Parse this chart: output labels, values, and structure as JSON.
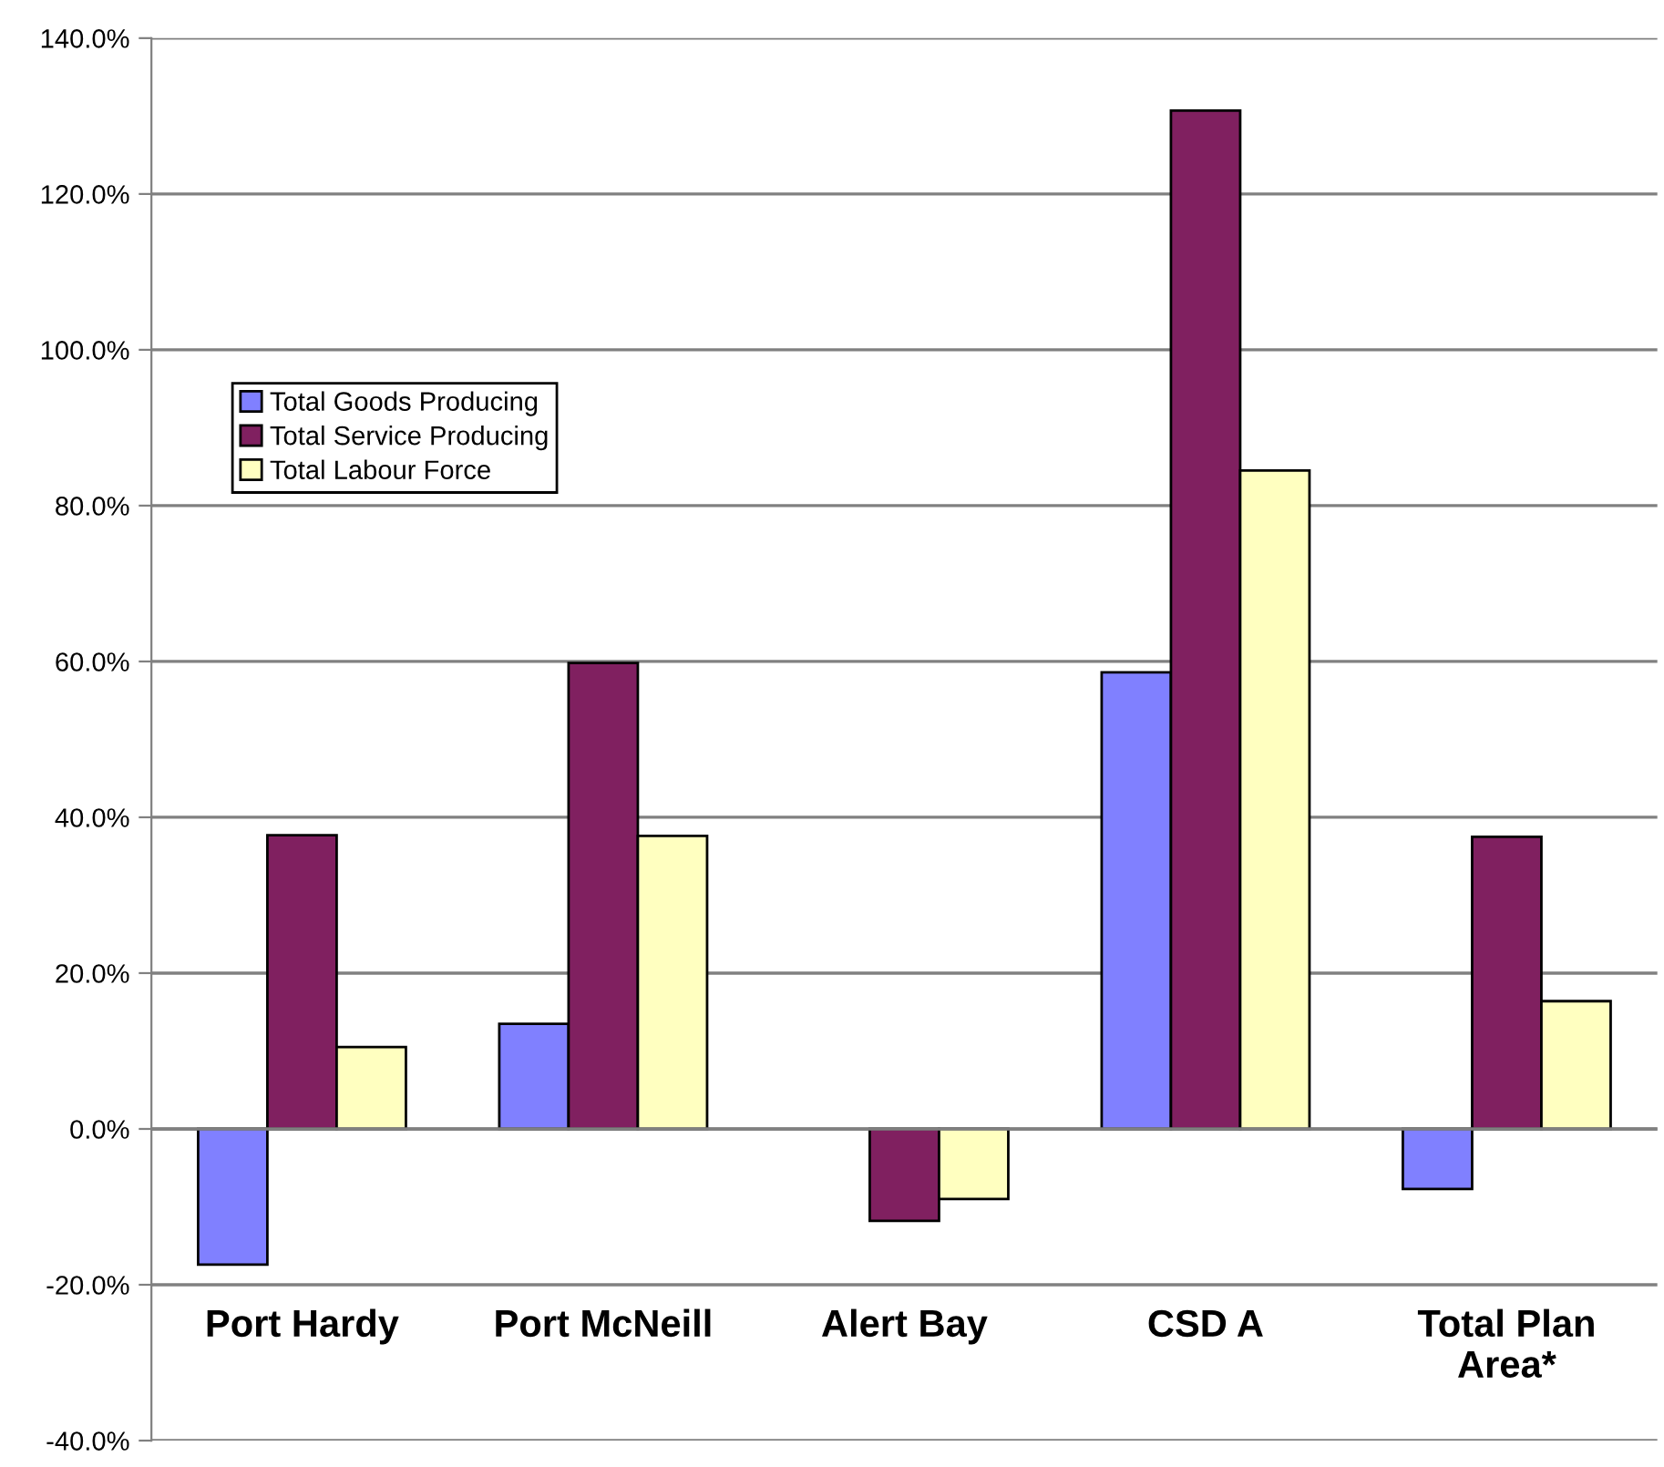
{
  "chart_data": {
    "type": "bar",
    "categories": [
      "Port Hardy",
      "Port McNeill",
      "Alert Bay",
      "CSD A",
      "Total Plan\nArea*"
    ],
    "series": [
      {
        "name": "Total Goods Producing",
        "color": "#8080ff",
        "values": [
          -17.4,
          13.5,
          null,
          58.6,
          -7.7
        ]
      },
      {
        "name": "Total Service Producing",
        "color": "#802060",
        "values": [
          37.7,
          59.8,
          -11.8,
          130.7,
          37.5
        ]
      },
      {
        "name": "Total Labour Force",
        "color": "#ffffc0",
        "values": [
          10.5,
          37.6,
          -9.0,
          84.5,
          16.4
        ]
      }
    ],
    "ylim": [
      -40,
      140
    ],
    "yticks": [
      {
        "value": -40,
        "label": "-40.0%"
      },
      {
        "value": -20,
        "label": "-20.0%"
      },
      {
        "value": 0,
        "label": "0.0%"
      },
      {
        "value": 20,
        "label": "20.0%"
      },
      {
        "value": 40,
        "label": "40.0%"
      },
      {
        "value": 60,
        "label": "60.0%"
      },
      {
        "value": 80,
        "label": "80.0%"
      },
      {
        "value": 100,
        "label": "100.0%"
      },
      {
        "value": 120,
        "label": "120.0%"
      },
      {
        "value": 140,
        "label": "140.0%"
      }
    ],
    "grid": "y",
    "legend": "left"
  }
}
